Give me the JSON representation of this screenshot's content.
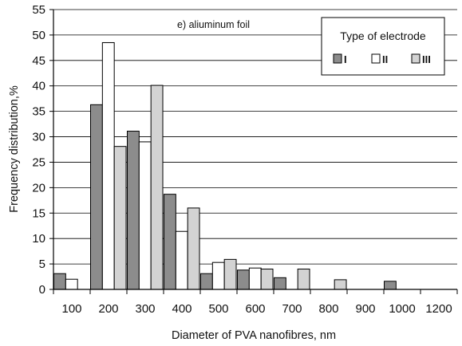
{
  "chart_data": {
    "type": "bar",
    "title": "",
    "annotation": "e) aliuminum foil",
    "xlabel": "Diameter of PVA nanofibres, nm",
    "ylabel": "Frequency distribution,%",
    "categories": [
      "100",
      "200",
      "300",
      "400",
      "500",
      "600",
      "700",
      "800",
      "900",
      "1000",
      "1200"
    ],
    "ylim": [
      0,
      55
    ],
    "yticks": [
      0,
      5,
      10,
      15,
      20,
      25,
      30,
      35,
      40,
      45,
      50,
      55
    ],
    "grid": "horizontal",
    "legend": {
      "title": "Type of electrode",
      "placement": "top-right"
    },
    "series": [
      {
        "name": "I",
        "color": "#8c8c8c",
        "values": [
          3.1,
          36.3,
          31.1,
          18.7,
          3.1,
          3.8,
          2.3,
          0,
          0,
          1.6,
          0
        ]
      },
      {
        "name": "II",
        "color": "#ffffff",
        "values": [
          2.0,
          48.5,
          29.0,
          11.4,
          5.3,
          4.2,
          0,
          0,
          0,
          0,
          0
        ]
      },
      {
        "name": "III",
        "color": "#d3d3d3",
        "values": [
          0,
          28.1,
          40.1,
          16.0,
          5.9,
          4.0,
          4.0,
          1.9,
          0,
          0,
          0
        ]
      }
    ]
  }
}
